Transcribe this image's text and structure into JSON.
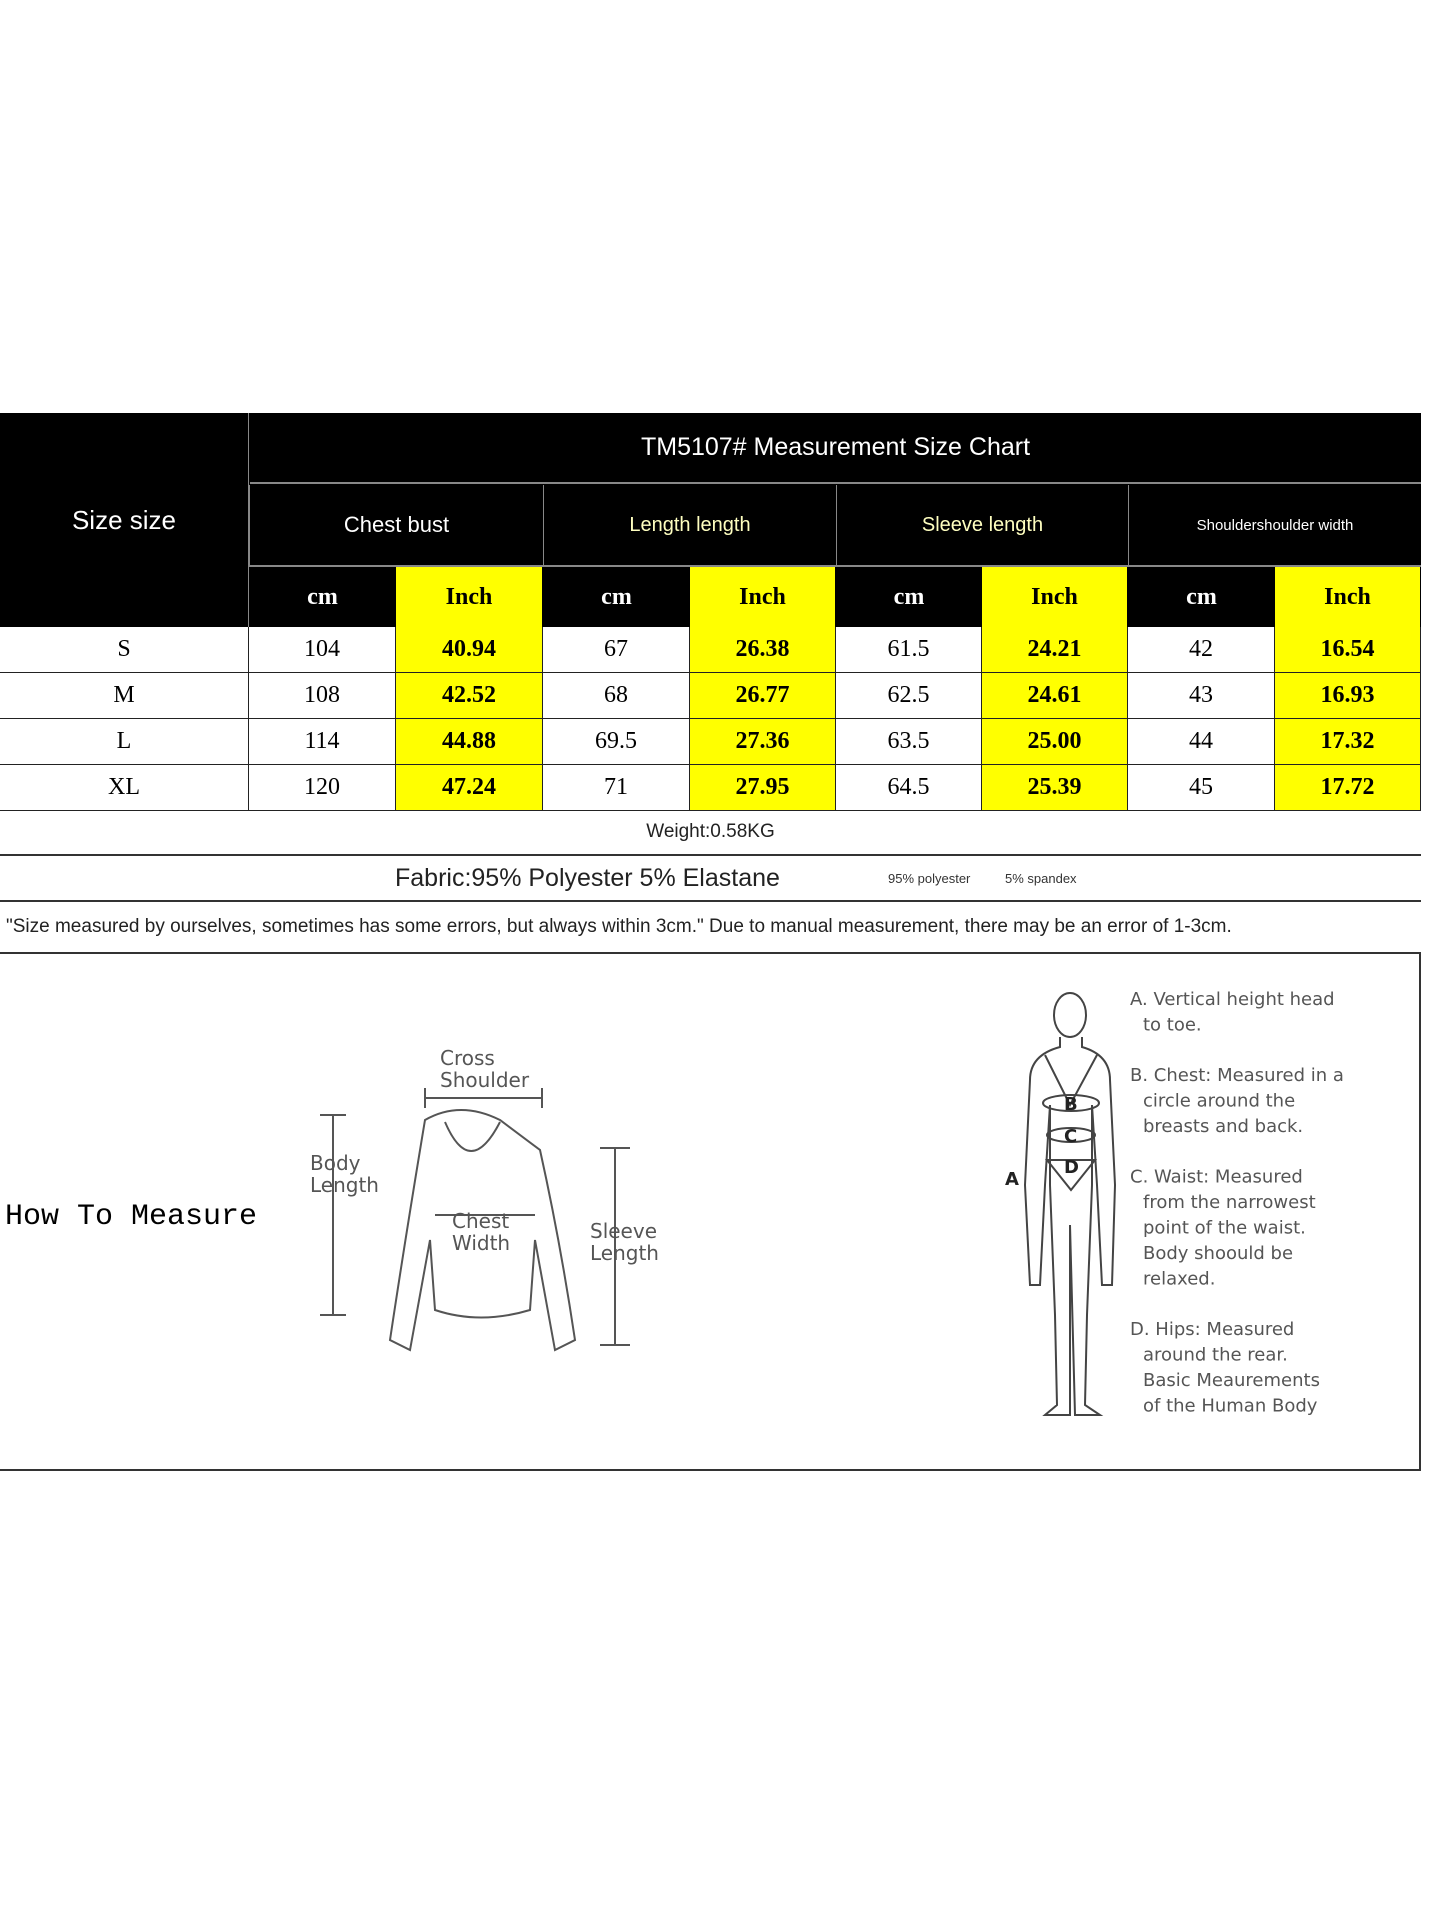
{
  "title": "TM5107# Measurement Size Chart",
  "size_header": "Size size",
  "groups": [
    "Chest bust",
    "Length length",
    "Sleeve length",
    "Shouldershoulder width"
  ],
  "units": [
    "cm",
    "Inch",
    "cm",
    "Inch",
    "cm",
    "Inch",
    "cm",
    "Inch"
  ],
  "rows": [
    {
      "size": "S",
      "values": [
        "104",
        "40.94",
        "67",
        "26.38",
        "61.5",
        "24.21",
        "42",
        "16.54"
      ]
    },
    {
      "size": "M",
      "values": [
        "108",
        "42.52",
        "68",
        "26.77",
        "62.5",
        "24.61",
        "43",
        "16.93"
      ]
    },
    {
      "size": "L",
      "values": [
        "114",
        "44.88",
        "69.5",
        "27.36",
        "63.5",
        "25.00",
        "44",
        "17.32"
      ]
    },
    {
      "size": "XL",
      "values": [
        "120",
        "47.24",
        "71",
        "27.95",
        "64.5",
        "25.39",
        "45",
        "17.72"
      ]
    }
  ],
  "weight": "Weight:0.58KG",
  "fabric": "Fabric:95% Polyester 5% Elastane",
  "fabric_small_1": "95% polyester",
  "fabric_small_2": "5% spandex",
  "note": "\"Size measured by ourselves, sometimes has some errors, but always within 3cm.\" Due to manual measurement, there may be an error of 1-3cm.",
  "how_to_measure": "How To Measure",
  "garment_labels": {
    "cross_shoulder": [
      "Cross",
      "Shoulder"
    ],
    "body_length": [
      "Body",
      "Length"
    ],
    "chest_width": [
      "Chest",
      "Width"
    ],
    "sleeve_length": [
      "Sleeve",
      "Length"
    ]
  },
  "body_letters": [
    "A",
    "B",
    "C",
    "D"
  ],
  "body_notes": [
    [
      "A. Vertical height head",
      "to toe."
    ],
    [
      "B. Chest: Measured in a",
      "circle around the",
      "breasts and back."
    ],
    [
      "C. Waist: Measured",
      "from the narrowest",
      "point of the waist.",
      "Body shoould be",
      "relaxed."
    ],
    [
      "D. Hips: Measured",
      "around the rear.",
      "Basic Meaurements",
      "of the Human Body"
    ]
  ],
  "colors": {
    "header_bg": "#000000",
    "inch_bg": "#ffff00"
  }
}
